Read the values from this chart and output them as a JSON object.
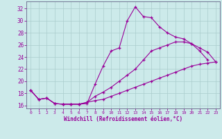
{
  "xlabel": "Windchill (Refroidissement éolien,°C)",
  "xlim_min": -0.5,
  "xlim_max": 23.5,
  "ylim_min": 15.5,
  "ylim_max": 33.2,
  "xticks": [
    0,
    1,
    2,
    3,
    4,
    5,
    6,
    7,
    8,
    9,
    10,
    11,
    12,
    13,
    14,
    15,
    16,
    17,
    18,
    19,
    20,
    21,
    22,
    23
  ],
  "yticks": [
    16,
    18,
    20,
    22,
    24,
    26,
    28,
    30,
    32
  ],
  "bg_color": "#cceaea",
  "line_color": "#990099",
  "grid_color": "#aacccc",
  "lines": [
    {
      "x": [
        0,
        1,
        2,
        3,
        4,
        5,
        6,
        7,
        8,
        9,
        10,
        11,
        12,
        13,
        14,
        15,
        16,
        17,
        18,
        19,
        20,
        21,
        22
      ],
      "y": [
        18.5,
        17.0,
        17.2,
        16.3,
        16.2,
        16.2,
        16.2,
        16.3,
        19.5,
        22.5,
        25.0,
        25.5,
        30.0,
        32.3,
        30.7,
        30.5,
        29.0,
        28.0,
        27.3,
        27.0,
        26.2,
        25.0,
        23.5
      ]
    },
    {
      "x": [
        0,
        1,
        2,
        3,
        4,
        5,
        6,
        7,
        8,
        9,
        10,
        11,
        12,
        13,
        14,
        15,
        16,
        17,
        18,
        19,
        20,
        21,
        22,
        23
      ],
      "y": [
        18.5,
        17.0,
        17.2,
        16.3,
        16.2,
        16.2,
        16.2,
        16.5,
        17.5,
        18.2,
        19.0,
        20.0,
        21.0,
        22.0,
        23.5,
        25.0,
        25.5,
        26.0,
        26.5,
        26.5,
        26.2,
        25.5,
        24.8,
        23.2
      ]
    },
    {
      "x": [
        0,
        1,
        2,
        3,
        4,
        5,
        6,
        7,
        8,
        9,
        10,
        11,
        12,
        13,
        14,
        15,
        16,
        17,
        18,
        19,
        20,
        21,
        22,
        23
      ],
      "y": [
        18.5,
        17.0,
        17.2,
        16.3,
        16.2,
        16.2,
        16.2,
        16.5,
        16.8,
        17.0,
        17.5,
        18.0,
        18.5,
        19.0,
        19.5,
        20.0,
        20.5,
        21.0,
        21.5,
        22.0,
        22.5,
        22.8,
        23.0,
        23.2
      ]
    }
  ]
}
